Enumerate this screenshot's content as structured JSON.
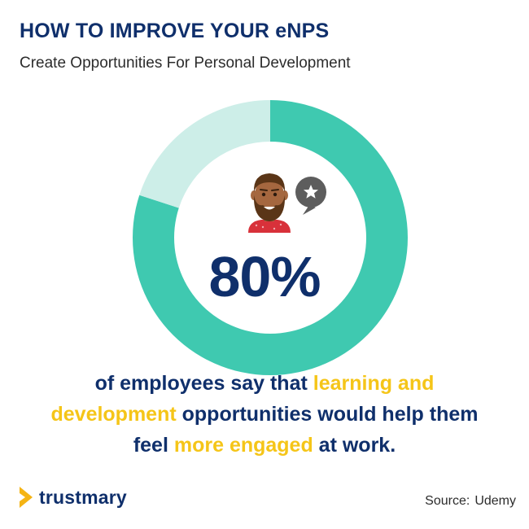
{
  "header": {
    "title": "HOW TO IMPROVE YOUR eNPS",
    "subtitle": "Create Opportunities For Personal Development"
  },
  "chart_data": {
    "type": "pie",
    "value_label": "80%",
    "slices": [
      {
        "value": 80,
        "color": "#3fc9b0"
      },
      {
        "value": 20,
        "color": "#cdeee8"
      }
    ]
  },
  "caption": {
    "part1": "of employees say that ",
    "highlight1": "learning and development",
    "part2": " opportunities would help them feel ",
    "highlight2": "more engaged",
    "part3": " at work."
  },
  "icons": {
    "person": "bearded-man-icon",
    "speech": "star-speech-bubble-icon",
    "logo": "trustmary-logo-icon"
  },
  "colors": {
    "navy": "#0f2f6b",
    "accent": "#f5c518",
    "teal": "#3fc9b0",
    "light_teal": "#cdeee8"
  },
  "footer": {
    "logo_text": "trustmary",
    "source_label": "Source:",
    "source_value": "Udemy"
  }
}
